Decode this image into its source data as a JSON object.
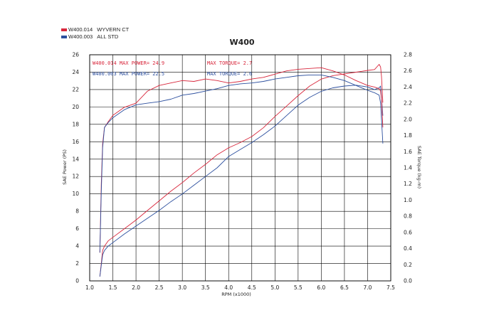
{
  "legend": [
    {
      "code": "W400.014",
      "name": "WYVERN CT",
      "color": "#d8263b"
    },
    {
      "code": "W400.003",
      "name": "ALL STD",
      "color": "#2c4f9e"
    }
  ],
  "colors": {
    "red": "#d8263b",
    "blue": "#2c4f9e",
    "grid": "#000000"
  },
  "chart_data": {
    "type": "line",
    "title": "W400",
    "xlabel": "RPM (x1000)",
    "ylabel": "SAE Power (PS)",
    "y2label": "SAE Torque (kg-m)",
    "xlim": [
      1.0,
      7.5
    ],
    "ylim": [
      0,
      26
    ],
    "y2lim": [
      0.0,
      2.8
    ],
    "xticks": [
      "1.0",
      "1.5",
      "2.0",
      "2.5",
      "3.0",
      "3.5",
      "4.0",
      "4.5",
      "5.0",
      "5.5",
      "6.0",
      "6.5",
      "7.0",
      "7.5"
    ],
    "yticks": [
      "0",
      "2",
      "4",
      "6",
      "8",
      "10",
      "12",
      "14",
      "16",
      "18",
      "20",
      "22",
      "24",
      "26"
    ],
    "y2ticks": [
      "0.0",
      "0.2",
      "0.4",
      "0.6",
      "0.8",
      "1.0",
      "1.2",
      "1.4",
      "1.6",
      "1.8",
      "2.0",
      "2.2",
      "2.4",
      "2.6",
      "2.8"
    ],
    "grid": true,
    "annotations": [
      {
        "text": "W400.014  MAX POWER= 24.9",
        "series": "W400.014"
      },
      {
        "text": "W400.003  MAX POWER= 22.5",
        "series": "W400.003"
      },
      {
        "text": "MAX TORQUE= 2.7",
        "series": "W400.014"
      },
      {
        "text": "MAX TORQUE= 2.6",
        "series": "W400.003"
      }
    ],
    "series": [
      {
        "name": "W400.014 WYVERN CT",
        "quantity": "power",
        "axis": "left",
        "color": "#d8263b",
        "x": [
          1.22,
          1.25,
          1.28,
          1.32,
          1.4,
          1.5,
          1.75,
          2.0,
          2.25,
          2.5,
          2.75,
          3.0,
          3.25,
          3.5,
          3.75,
          4.0,
          4.25,
          4.5,
          4.75,
          5.0,
          5.25,
          5.5,
          5.75,
          6.0,
          6.25,
          6.5,
          6.75,
          7.0,
          7.15,
          7.25,
          7.28,
          7.3,
          7.33
        ],
        "y": [
          0.5,
          2.0,
          3.5,
          4.0,
          4.6,
          5.0,
          6.0,
          7.0,
          8.1,
          9.2,
          10.3,
          11.3,
          12.4,
          13.4,
          14.5,
          15.3,
          15.9,
          16.6,
          17.6,
          18.9,
          20.1,
          21.3,
          22.4,
          23.2,
          23.6,
          23.8,
          24.0,
          24.2,
          24.3,
          24.9,
          24.6,
          23.5,
          20.5
        ]
      },
      {
        "name": "W400.003 ALL STD",
        "quantity": "power",
        "axis": "left",
        "color": "#2c4f9e",
        "x": [
          1.22,
          1.25,
          1.28,
          1.32,
          1.4,
          1.5,
          1.75,
          2.0,
          2.25,
          2.5,
          2.75,
          3.0,
          3.25,
          3.5,
          3.75,
          4.0,
          4.25,
          4.5,
          4.75,
          5.0,
          5.25,
          5.5,
          5.75,
          6.0,
          6.25,
          6.5,
          6.75,
          7.0,
          7.15,
          7.25,
          7.28,
          7.3,
          7.33
        ],
        "y": [
          0.5,
          1.8,
          3.0,
          3.5,
          4.0,
          4.4,
          5.4,
          6.3,
          7.2,
          8.1,
          9.1,
          10.0,
          11.0,
          12.0,
          13.0,
          14.3,
          15.1,
          15.9,
          16.8,
          17.8,
          19.0,
          20.2,
          21.1,
          21.8,
          22.2,
          22.4,
          22.5,
          22.3,
          22.0,
          22.2,
          22.4,
          21.0,
          19.0
        ]
      },
      {
        "name": "W400.014 WYVERN CT",
        "quantity": "torque",
        "axis": "right",
        "color": "#d8263b",
        "x": [
          1.22,
          1.25,
          1.28,
          1.32,
          1.4,
          1.5,
          1.75,
          2.0,
          2.25,
          2.5,
          2.75,
          3.0,
          3.25,
          3.5,
          3.75,
          4.0,
          4.25,
          4.5,
          4.75,
          5.0,
          5.25,
          5.5,
          5.75,
          6.0,
          6.25,
          6.5,
          6.75,
          7.0,
          7.15,
          7.25,
          7.28,
          7.3,
          7.33
        ],
        "y": [
          0.35,
          1.2,
          1.7,
          1.9,
          1.97,
          2.05,
          2.15,
          2.2,
          2.35,
          2.42,
          2.45,
          2.48,
          2.47,
          2.5,
          2.48,
          2.45,
          2.47,
          2.5,
          2.52,
          2.56,
          2.6,
          2.62,
          2.63,
          2.64,
          2.6,
          2.55,
          2.48,
          2.42,
          2.4,
          2.38,
          2.35,
          2.25,
          1.9
        ]
      },
      {
        "name": "W400.003 ALL STD",
        "quantity": "torque",
        "axis": "right",
        "color": "#2c4f9e",
        "x": [
          1.22,
          1.25,
          1.28,
          1.32,
          1.4,
          1.5,
          1.75,
          2.0,
          2.25,
          2.5,
          2.75,
          3.0,
          3.25,
          3.5,
          3.75,
          4.0,
          4.25,
          4.5,
          4.75,
          5.0,
          5.25,
          5.5,
          5.75,
          6.0,
          6.25,
          6.5,
          6.75,
          7.0,
          7.15,
          7.25,
          7.28,
          7.3,
          7.33
        ],
        "y": [
          0.35,
          1.1,
          1.65,
          1.9,
          1.96,
          2.02,
          2.12,
          2.18,
          2.2,
          2.22,
          2.25,
          2.3,
          2.32,
          2.35,
          2.38,
          2.42,
          2.44,
          2.45,
          2.47,
          2.5,
          2.52,
          2.54,
          2.55,
          2.55,
          2.52,
          2.48,
          2.42,
          2.36,
          2.33,
          2.3,
          2.2,
          2.0,
          1.7
        ]
      }
    ]
  }
}
